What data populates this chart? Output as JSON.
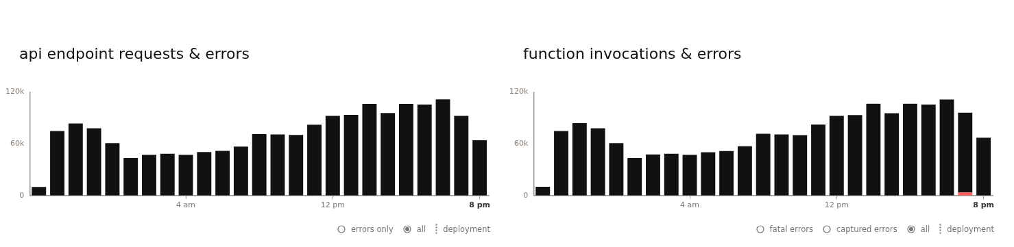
{
  "chart_data": [
    {
      "type": "bar",
      "title": "api endpoint requests & errors",
      "categories": [
        null,
        null,
        null,
        null,
        null,
        null,
        null,
        null,
        "4 am",
        null,
        null,
        null,
        null,
        null,
        null,
        null,
        "12 pm",
        null,
        null,
        null,
        null,
        null,
        null,
        null,
        "8 pm"
      ],
      "series": [
        {
          "color": "#111111",
          "values": [
            10000,
            74800,
            83600,
            78000,
            60700,
            43400,
            47300,
            48400,
            47300,
            50500,
            51900,
            56800,
            71300,
            70900,
            70200,
            82200,
            92500,
            93500,
            106200,
            95600,
            106200,
            105500,
            111500,
            92500,
            64200
          ]
        }
      ],
      "ylim": [
        0,
        120000
      ],
      "yticks": [
        {
          "value": 0,
          "label": "0"
        },
        {
          "value": 60000,
          "label": "60k"
        },
        {
          "value": 120000,
          "label": "120k"
        }
      ],
      "grid": false,
      "legend": false,
      "annotations": [
        "errors only",
        "all",
        "deployment"
      ]
    },
    {
      "type": "bar",
      "title": "function invocations & errors",
      "stacked": true,
      "categories": [
        null,
        null,
        null,
        null,
        null,
        null,
        null,
        null,
        "4 am",
        null,
        null,
        null,
        null,
        null,
        null,
        null,
        "12 pm",
        null,
        null,
        null,
        null,
        null,
        null,
        null,
        "8 pm"
      ],
      "series": [
        {
          "color": "#ff5a5a",
          "values": [
            0,
            0,
            0,
            0,
            0,
            0,
            0,
            0,
            0,
            0,
            0,
            0,
            0,
            0,
            0,
            0,
            0,
            0,
            0,
            0,
            0,
            0,
            0,
            3600,
            0
          ]
        },
        {
          "color": "#111111",
          "values": [
            10100,
            74800,
            83900,
            78000,
            60700,
            43400,
            47700,
            48400,
            47300,
            50200,
            51700,
            57100,
            71600,
            70800,
            70100,
            82400,
            92500,
            93300,
            106300,
            95400,
            106300,
            105500,
            111300,
            92500,
            67200
          ]
        }
      ],
      "ylim": [
        0,
        120000
      ],
      "yticks": [
        {
          "value": 0,
          "label": "0"
        },
        {
          "value": 60000,
          "label": "60k"
        },
        {
          "value": 120000,
          "label": "120k"
        }
      ],
      "grid": false,
      "legend": false,
      "annotations": [
        "fatal errors",
        "captured errors",
        "all",
        "deployment"
      ]
    }
  ]
}
